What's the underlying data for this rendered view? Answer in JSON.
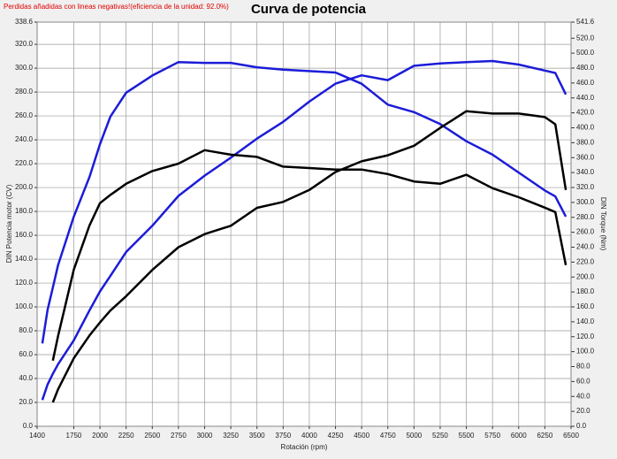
{
  "chart_data": {
    "type": "line",
    "title": "Curva de potencia",
    "note": "Perdidas añadidas con lineas negativas!(eficiencia de la unidad: 92.0%)",
    "xlabel": "Rotación (rpm)",
    "ylabel": "DIN Potencia motor (CV)",
    "y2label": "DIN Torque (Nm)",
    "x": [
      1450,
      1500,
      1550,
      1600,
      1750,
      1900,
      2000,
      2100,
      2250,
      2500,
      2750,
      3000,
      3250,
      3500,
      3750,
      4000,
      4250,
      4500,
      4750,
      5000,
      5250,
      5500,
      5750,
      6000,
      6250,
      6350,
      6450
    ],
    "series": [
      {
        "color": "#1c1cd8",
        "axis": "y2",
        "values": [
          111,
          156,
          186,
          216,
          281,
          334,
          378,
          415,
          447,
          470,
          488,
          487,
          487,
          481,
          478,
          476,
          474,
          459,
          431,
          421,
          405,
          382,
          364,
          340,
          316,
          308,
          281
        ]
      },
      {
        "color": "#1c1cd8",
        "values": [
          22,
          35,
          44,
          52,
          72,
          97,
          113,
          126,
          146,
          168,
          193,
          210,
          225,
          241,
          255,
          272,
          287,
          294,
          290,
          302,
          304,
          305,
          306,
          303,
          298,
          296,
          278
        ]
      },
      {
        "color": "#000000",
        "axis": "y2",
        "values": [
          null,
          null,
          88,
          121,
          210,
          269,
          299,
          310,
          325,
          342,
          352,
          370,
          364,
          361,
          348,
          346,
          344,
          344,
          338,
          328,
          325,
          337,
          319,
          307,
          293,
          287,
          216
        ]
      },
      {
        "color": "#000000",
        "values": [
          null,
          null,
          20,
          31,
          57,
          76,
          87,
          97,
          109,
          131,
          150,
          161,
          168,
          183,
          188,
          198,
          213,
          222,
          227,
          235,
          250,
          264,
          262,
          262,
          259,
          253,
          198
        ]
      }
    ],
    "xlim": [
      1400,
      6500
    ],
    "xticks": [
      1400,
      1750,
      2000,
      2250,
      2500,
      2750,
      3000,
      3250,
      3500,
      3750,
      4000,
      4250,
      4500,
      4750,
      5000,
      5250,
      5500,
      5750,
      6000,
      6250,
      6500
    ],
    "ylim": [
      0,
      338.6
    ],
    "yticks": [
      {
        "value": 0,
        "label": "0.0"
      },
      {
        "value": 20,
        "label": "20.0"
      },
      {
        "value": 40,
        "label": "40.0"
      },
      {
        "value": 60,
        "label": "60.0"
      },
      {
        "value": 80,
        "label": "80.0"
      },
      {
        "value": 100,
        "label": "100.0"
      },
      {
        "value": 120,
        "label": "120.0"
      },
      {
        "value": 140,
        "label": "140.0"
      },
      {
        "value": 160,
        "label": "160.0"
      },
      {
        "value": 180,
        "label": "180.0"
      },
      {
        "value": 200,
        "label": "200.0"
      },
      {
        "value": 220,
        "label": "220.0"
      },
      {
        "value": 240,
        "label": "240.0"
      },
      {
        "value": 260,
        "label": "260.0"
      },
      {
        "value": 280,
        "label": "280.0"
      },
      {
        "value": 300,
        "label": "300.0"
      },
      {
        "value": 320,
        "label": "320.0"
      },
      338.6
    ],
    "y2lim": [
      0,
      541.6
    ],
    "y2ticks": [
      {
        "value": 0,
        "label": "0.0"
      },
      {
        "value": 20,
        "label": "20.0"
      },
      {
        "value": 40,
        "label": "40.0"
      },
      {
        "value": 60,
        "label": "60.0"
      },
      {
        "value": 80,
        "label": "80.0"
      },
      {
        "value": 100,
        "label": "100.0"
      },
      {
        "value": 120,
        "label": "120.0"
      },
      {
        "value": 140,
        "label": "140.0"
      },
      {
        "value": 160,
        "label": "160.0"
      },
      {
        "value": 180,
        "label": "180.0"
      },
      {
        "value": 200,
        "label": "200.0"
      },
      {
        "value": 220,
        "label": "220.0"
      },
      {
        "value": 240,
        "label": "240.0"
      },
      {
        "value": 260,
        "label": "260.0"
      },
      {
        "value": 280,
        "label": "280.0"
      },
      {
        "value": 300,
        "label": "300.0"
      },
      {
        "value": 320,
        "label": "320.0"
      },
      {
        "value": 340,
        "label": "340.0"
      },
      {
        "value": 360,
        "label": "360.0"
      },
      {
        "value": 380,
        "label": "380.0"
      },
      {
        "value": 400,
        "label": "400.0"
      },
      {
        "value": 420,
        "label": "420.0"
      },
      {
        "value": 440,
        "label": "440.0"
      },
      {
        "value": 460,
        "label": "460.0"
      },
      {
        "value": 480,
        "label": "480.0"
      },
      {
        "value": 500,
        "label": "500.0"
      },
      {
        "value": 520,
        "label": "520.0"
      },
      541.6
    ],
    "grid": true
  }
}
